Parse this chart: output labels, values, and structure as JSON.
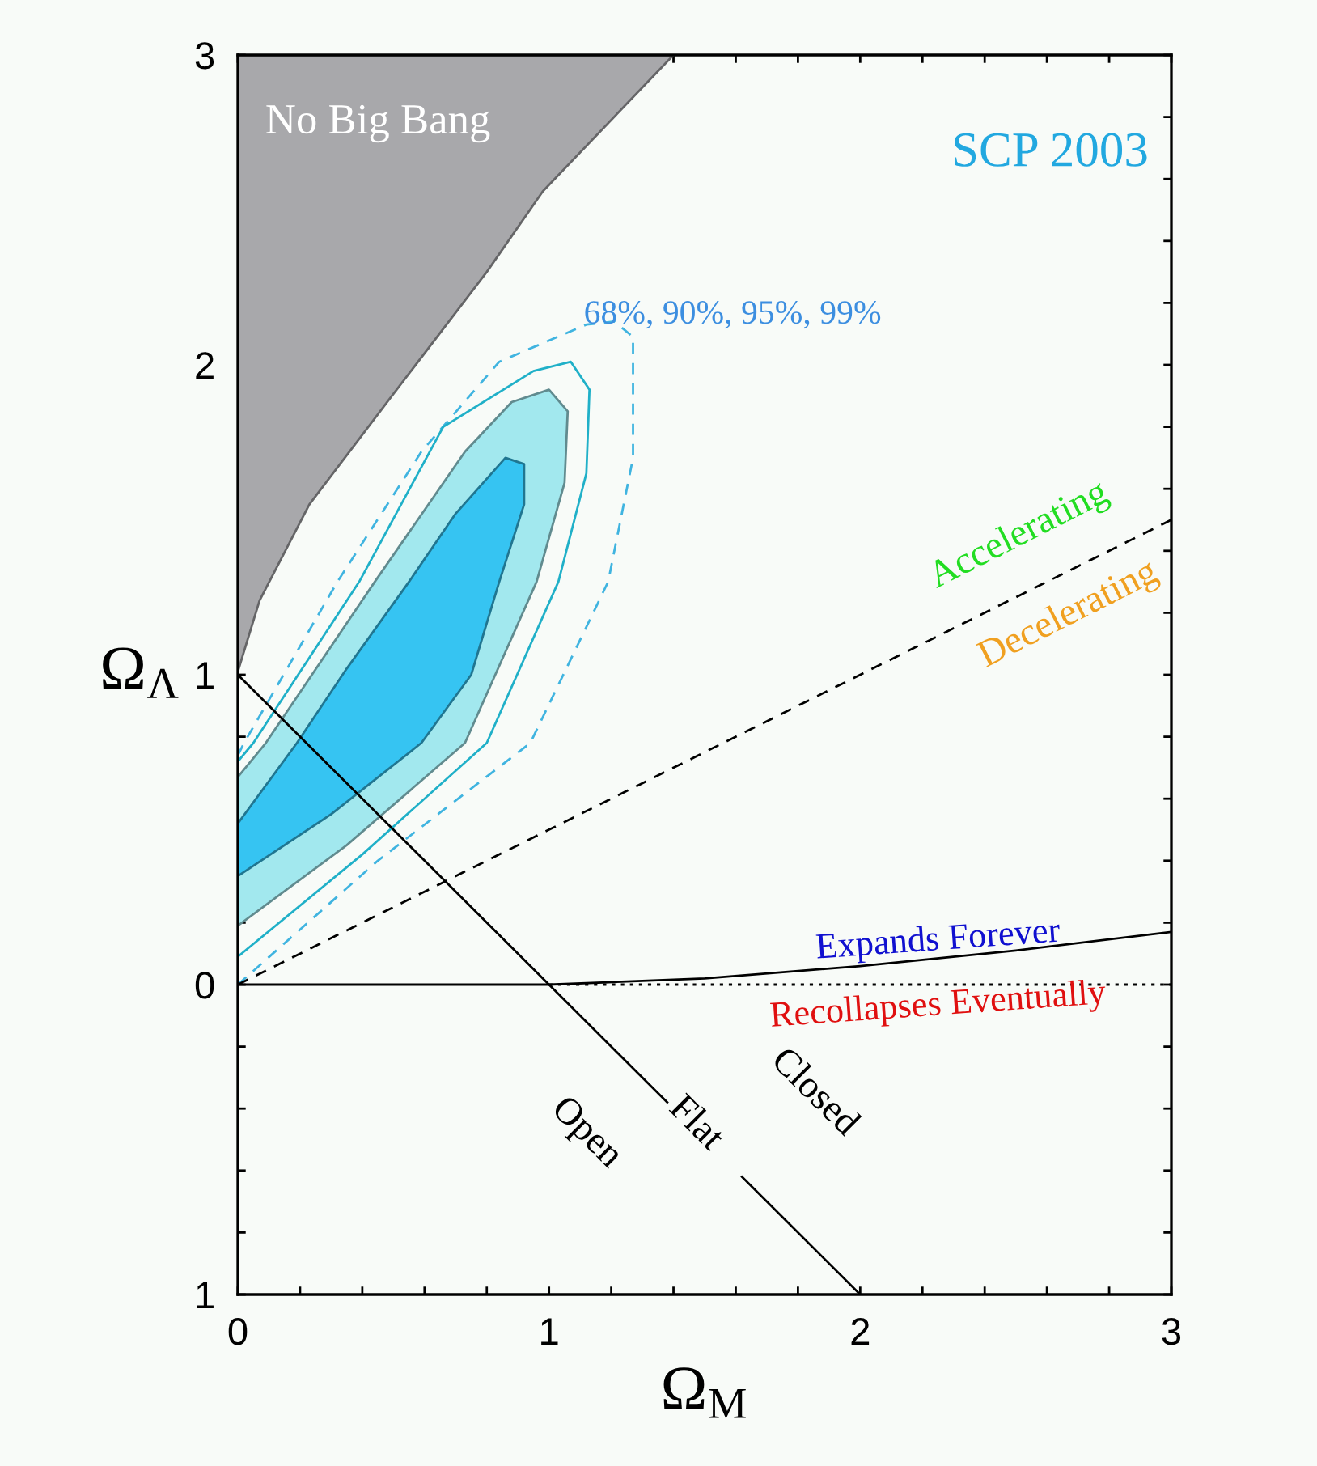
{
  "chart_data": {
    "type": "line",
    "xlabel": "Ω$_{M}$",
    "ylabel": "Ω$_{Λ}$",
    "xlim": [
      0,
      3
    ],
    "ylim": [
      -1,
      3
    ],
    "xticks": [
      0,
      {
        "value": 0.2,
        "label": null
      },
      {
        "value": 0.4,
        "label": null
      },
      {
        "value": 0.6,
        "label": null
      },
      {
        "value": 0.8,
        "label": null
      },
      1,
      {
        "value": 1.2,
        "label": null
      },
      {
        "value": 1.4,
        "label": null
      },
      {
        "value": 1.6,
        "label": null
      },
      {
        "value": 1.8,
        "label": null
      },
      2,
      {
        "value": 2.2,
        "label": null
      },
      {
        "value": 2.4,
        "label": null
      },
      {
        "value": 2.6,
        "label": null
      },
      {
        "value": 2.8,
        "label": null
      },
      3
    ],
    "yticks": [
      {
        "value": -1,
        "label": "1"
      },
      {
        "value": -0.8,
        "label": null
      },
      {
        "value": -0.6,
        "label": null
      },
      {
        "value": -0.4,
        "label": null
      },
      {
        "value": -0.2,
        "label": null
      },
      0,
      {
        "value": 0.2,
        "label": null
      },
      {
        "value": 0.4,
        "label": null
      },
      {
        "value": 0.6,
        "label": null
      },
      {
        "value": 0.8,
        "label": null
      },
      1,
      {
        "value": 1.2,
        "label": null
      },
      {
        "value": 1.4,
        "label": null
      },
      {
        "value": 1.6,
        "label": null
      },
      {
        "value": 1.8,
        "label": null
      },
      2,
      {
        "value": 2.2,
        "label": null
      },
      {
        "value": 2.4,
        "label": null
      },
      {
        "value": 2.6,
        "label": null
      },
      {
        "value": 2.8,
        "label": null
      },
      3
    ],
    "grid": false,
    "marker": "none",
    "series": [
      {
        "type": "area",
        "color": "#a8a8ab",
        "x": [
          0,
          0,
          0.07,
          0.23,
          0.48,
          0.8,
          0.98,
          1.4
        ],
        "values": [
          3,
          1.01,
          1.24,
          1.55,
          1.88,
          2.3,
          2.56,
          3
        ]
      },
      {
        "color": "#40b4e0",
        "line_style": "dashed",
        "x": [
          0,
          0.45,
          0.94,
          1.19,
          1.27,
          1.27,
          1.21,
          1.12,
          0.84,
          0.59,
          0.32,
          0.02,
          0
        ],
        "values": [
          0.0,
          0.4,
          0.78,
          1.3,
          1.7,
          2.09,
          2.14,
          2.13,
          2.01,
          1.72,
          1.3,
          0.78,
          0.74
        ]
      },
      {
        "color": "#20b0c8",
        "line_style": "solid",
        "x": [
          0,
          0.4,
          0.8,
          1.03,
          1.12,
          1.13,
          1.07,
          0.95,
          0.66,
          0.39,
          0.05,
          0
        ],
        "values": [
          0.09,
          0.42,
          0.78,
          1.3,
          1.65,
          1.92,
          2.01,
          1.98,
          1.8,
          1.3,
          0.78,
          0.72
        ]
      },
      {
        "type": "area",
        "color": "#a2e8ee",
        "x": [
          0,
          0.35,
          0.73,
          0.96,
          1.05,
          1.06,
          1.0,
          0.88,
          0.73,
          0.44,
          0.09,
          0
        ],
        "values": [
          0.19,
          0.45,
          0.78,
          1.3,
          1.62,
          1.85,
          1.92,
          1.88,
          1.72,
          1.3,
          0.78,
          0.67
        ]
      },
      {
        "type": "area",
        "color": "#36c4f2",
        "x": [
          0,
          0.3,
          0.59,
          0.75,
          0.84,
          0.92,
          0.92,
          0.86,
          0.7,
          0.55,
          0.35,
          0.19,
          0
        ],
        "values": [
          0.35,
          0.55,
          0.78,
          1.0,
          1.3,
          1.55,
          1.68,
          1.7,
          1.52,
          1.3,
          1.02,
          0.78,
          0.52
        ]
      },
      {
        "color": "#000000",
        "line_style": "dashed",
        "x": [
          0,
          3
        ],
        "values": [
          0,
          1.5
        ]
      },
      {
        "color": "#000000",
        "line_style": "solid",
        "x": [
          0,
          1.38,
          1.5,
          1.62,
          2
        ],
        "values": [
          1,
          -0.38,
          null,
          -0.62,
          -1
        ]
      },
      {
        "color": "#000000",
        "line_style": "solid",
        "x": [
          0,
          1,
          1.5,
          2,
          2.5,
          3
        ],
        "values": [
          0,
          0,
          0.02,
          0.06,
          0.11,
          0.17
        ]
      },
      {
        "color": "#000000",
        "line_style": "dotted",
        "x": [
          1,
          3
        ],
        "values": [
          0,
          0
        ]
      }
    ],
    "annotations": [
      "No Big Bang",
      "SCP 2003",
      "68%, 90%, 95%, 99%",
      "Accelerating",
      "Decelerating",
      "Expands Forever",
      "Recollapses Eventually",
      "Open",
      "Flat",
      "Closed"
    ]
  }
}
